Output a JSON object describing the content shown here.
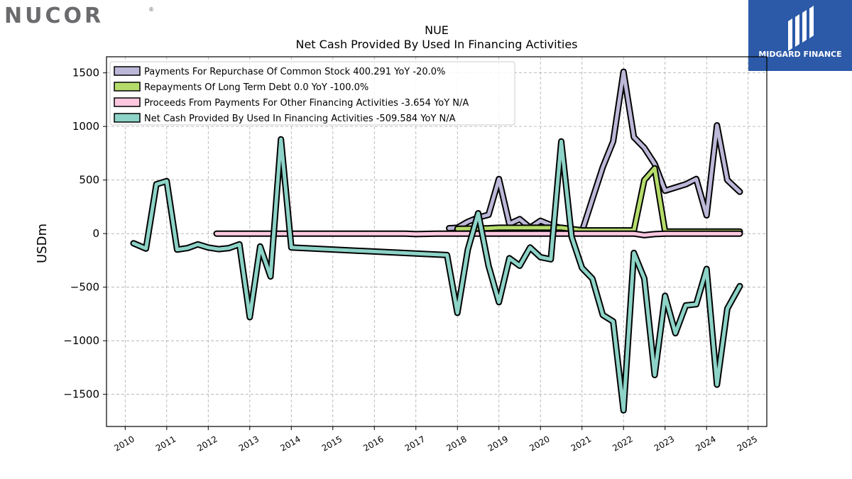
{
  "brand": {
    "company_logo_text": "NUCOR",
    "company_logo_mark": "®",
    "watermark_text": "MIDGARD FINANCE",
    "watermark_bg": "#2c5aa8"
  },
  "chart_data": {
    "type": "line",
    "title": "NUE",
    "subtitle": "Net Cash Provided By Used In Financing Activities",
    "xlabel": "",
    "ylabel": "USDm",
    "xlim": [
      2009.55,
      2025.45
    ],
    "ylim": [
      -1800,
      1650
    ],
    "yticks": [
      1500,
      1000,
      500,
      0,
      -500,
      -1000,
      -1500
    ],
    "ytick_labels": [
      "1500",
      "1000",
      "500",
      "0",
      "−500",
      "−1000",
      "−1500"
    ],
    "xticks": [
      2010,
      2011,
      2012,
      2013,
      2014,
      2015,
      2016,
      2017,
      2018,
      2019,
      2020,
      2021,
      2022,
      2023,
      2024,
      2025
    ],
    "xtick_labels": [
      "2010",
      "2011",
      "2012",
      "2013",
      "2014",
      "2015",
      "2016",
      "2017",
      "2018",
      "2019",
      "2020",
      "2021",
      "2022",
      "2023",
      "2024",
      "2025"
    ],
    "grid": true,
    "legend_position": "top-left",
    "series": [
      {
        "name": "Payments For Repurchase Of Common Stock",
        "legend_label": "Payments For Repurchase Of Common Stock  400.291 YoY -20.0%",
        "color": "#bcb8d8",
        "points": [
          [
            2017.8,
            50
          ],
          [
            2018.0,
            55
          ],
          [
            2018.25,
            110
          ],
          [
            2018.5,
            150
          ],
          [
            2018.75,
            175
          ],
          [
            2019.0,
            510
          ],
          [
            2019.25,
            90
          ],
          [
            2019.5,
            135
          ],
          [
            2019.75,
            55
          ],
          [
            2020.0,
            120
          ],
          [
            2020.25,
            80
          ],
          [
            2020.5,
            50
          ],
          [
            2020.75,
            30
          ],
          [
            2021.0,
            20
          ],
          [
            2021.25,
            320
          ],
          [
            2021.5,
            620
          ],
          [
            2021.75,
            860
          ],
          [
            2022.0,
            1510
          ],
          [
            2022.25,
            900
          ],
          [
            2022.5,
            800
          ],
          [
            2022.75,
            650
          ],
          [
            2023.0,
            400
          ],
          [
            2023.25,
            430
          ],
          [
            2023.5,
            460
          ],
          [
            2023.75,
            510
          ],
          [
            2024.0,
            170
          ],
          [
            2024.25,
            1010
          ],
          [
            2024.5,
            500
          ],
          [
            2024.8,
            390
          ]
        ]
      },
      {
        "name": "Repayments Of Long Term Debt",
        "legend_label": "Repayments Of Long Term Debt  0.0 YoY -100.0%",
        "color": "#b5dc6b",
        "points": [
          [
            2018.0,
            45
          ],
          [
            2018.75,
            50
          ],
          [
            2019.0,
            55
          ],
          [
            2019.5,
            55
          ],
          [
            2020.0,
            55
          ],
          [
            2020.5,
            55
          ],
          [
            2021.0,
            30
          ],
          [
            2022.25,
            30
          ],
          [
            2022.5,
            500
          ],
          [
            2022.75,
            610
          ],
          [
            2023.0,
            20
          ],
          [
            2024.0,
            20
          ],
          [
            2024.8,
            20
          ]
        ]
      },
      {
        "name": "Proceeds From Payments For Other Financing Activities",
        "legend_label": "Proceeds From Payments For Other Financing Activities  -3.654 YoY N/A",
        "color": "#fcc8e0",
        "points": [
          [
            2012.2,
            0
          ],
          [
            2013.0,
            0
          ],
          [
            2014.0,
            0
          ],
          [
            2015.0,
            0
          ],
          [
            2016.0,
            0
          ],
          [
            2016.5,
            0
          ],
          [
            2016.75,
            0
          ],
          [
            2017.0,
            -5
          ],
          [
            2017.5,
            0
          ],
          [
            2018.0,
            0
          ],
          [
            2019.0,
            0
          ],
          [
            2020.0,
            0
          ],
          [
            2021.0,
            0
          ],
          [
            2022.0,
            0
          ],
          [
            2022.25,
            0
          ],
          [
            2022.5,
            -15
          ],
          [
            2022.75,
            -5
          ],
          [
            2023.0,
            0
          ],
          [
            2023.5,
            0
          ],
          [
            2024.0,
            0
          ],
          [
            2024.8,
            0
          ]
        ]
      },
      {
        "name": "Net Cash Provided By Used In Financing Activities",
        "legend_label": "Net Cash Provided By Used In Financing Activities  -509.584 YoY N/A",
        "color": "#8dd3c7",
        "points": [
          [
            2010.2,
            -90
          ],
          [
            2010.5,
            -140
          ],
          [
            2010.75,
            460
          ],
          [
            2011.0,
            490
          ],
          [
            2011.25,
            -150
          ],
          [
            2011.5,
            -135
          ],
          [
            2011.75,
            -100
          ],
          [
            2012.0,
            -130
          ],
          [
            2012.25,
            -145
          ],
          [
            2012.5,
            -135
          ],
          [
            2012.75,
            -100
          ],
          [
            2013.0,
            -780
          ],
          [
            2013.25,
            -120
          ],
          [
            2013.5,
            -400
          ],
          [
            2013.75,
            880
          ],
          [
            2014.0,
            -130
          ],
          [
            2017.75,
            -200
          ],
          [
            2018.0,
            -740
          ],
          [
            2018.25,
            -150
          ],
          [
            2018.5,
            190
          ],
          [
            2018.75,
            -300
          ],
          [
            2019.0,
            -640
          ],
          [
            2019.25,
            -230
          ],
          [
            2019.5,
            -300
          ],
          [
            2019.75,
            -130
          ],
          [
            2020.0,
            -220
          ],
          [
            2020.25,
            -240
          ],
          [
            2020.5,
            860
          ],
          [
            2020.75,
            -30
          ],
          [
            2021.0,
            -320
          ],
          [
            2021.25,
            -420
          ],
          [
            2021.5,
            -760
          ],
          [
            2021.75,
            -820
          ],
          [
            2022.0,
            -1650
          ],
          [
            2022.25,
            -180
          ],
          [
            2022.5,
            -420
          ],
          [
            2022.75,
            -1320
          ],
          [
            2023.0,
            -580
          ],
          [
            2023.25,
            -930
          ],
          [
            2023.5,
            -670
          ],
          [
            2023.75,
            -660
          ],
          [
            2024.0,
            -330
          ],
          [
            2024.25,
            -1410
          ],
          [
            2024.5,
            -700
          ],
          [
            2024.8,
            -490
          ]
        ]
      }
    ]
  }
}
